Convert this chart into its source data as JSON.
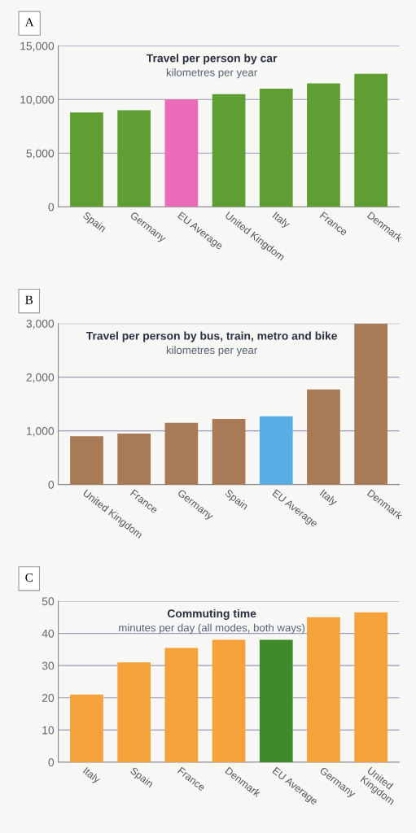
{
  "chart_data": [
    {
      "type": "bar",
      "title": "Travel per person by car",
      "subtitle": "kilometres per year",
      "annotations": [
        "A"
      ],
      "categories": [
        "Spain",
        "Germany",
        "EU Average",
        "United Kingdom",
        "Italy",
        "France",
        "Denmark"
      ],
      "values": [
        8800,
        9000,
        10000,
        10500,
        11000,
        11500,
        12400
      ],
      "colors": [
        "#5e9e32",
        "#5e9e32",
        "#ea6bb8",
        "#5e9e32",
        "#5e9e32",
        "#5e9e32",
        "#5e9e32"
      ],
      "ylim": [
        0,
        15000
      ],
      "yticks": [
        {
          "value": 0,
          "label": "0"
        },
        {
          "value": 5000,
          "label": "5,000"
        },
        {
          "value": 10000,
          "label": "10,000"
        },
        {
          "value": 15000,
          "label": "15,000"
        }
      ],
      "grid": "y"
    },
    {
      "type": "bar",
      "title": "Travel per person by bus, train, metro and bike",
      "subtitle": "kilometres per year",
      "annotations": [
        "B"
      ],
      "categories": [
        "United Kingdom",
        "France",
        "Germany",
        "Spain",
        "EU Average",
        "Italy",
        "Denmark"
      ],
      "values": [
        900,
        950,
        1150,
        1220,
        1270,
        1770,
        3000
      ],
      "colors": [
        "#a87a55",
        "#a87a55",
        "#a87a55",
        "#a87a55",
        "#5aaee6",
        "#a87a55",
        "#a87a55"
      ],
      "ylim": [
        0,
        3000
      ],
      "yticks": [
        {
          "value": 0,
          "label": "0"
        },
        {
          "value": 1000,
          "label": "1,000"
        },
        {
          "value": 2000,
          "label": "2,000"
        },
        {
          "value": 3000,
          "label": "3,000"
        }
      ],
      "grid": "y"
    },
    {
      "type": "bar",
      "title": "Commuting time",
      "subtitle": "minutes per day (all modes, both ways)",
      "annotations": [
        "C"
      ],
      "categories": [
        "Italy",
        "Spain",
        "France",
        "Denmark",
        "EU Average",
        "Germany",
        "United\nKingdom"
      ],
      "values": [
        21,
        31,
        35.5,
        38,
        38,
        45,
        46.5
      ],
      "colors": [
        "#f5a23a",
        "#f5a23a",
        "#f5a23a",
        "#f5a23a",
        "#3f8a28",
        "#f5a23a",
        "#f5a23a"
      ],
      "ylim": [
        0,
        50
      ],
      "yticks": [
        0,
        10,
        20,
        30,
        40,
        50
      ],
      "grid": "y"
    }
  ]
}
